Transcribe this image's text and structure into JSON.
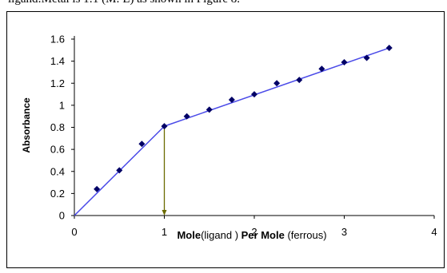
{
  "header_text": "ligand:Metal is 1:1 (M: L) as shown in Figure 8.",
  "chart_data": {
    "type": "line",
    "ylabel": "Absorbance",
    "xlabel_parts": [
      "Mole",
      "(ligand ) ",
      "Per Mole ",
      "(ferrous)"
    ],
    "xlim": [
      0,
      4
    ],
    "ylim": [
      0,
      1.6
    ],
    "x_ticks": [
      "0",
      "1",
      "2",
      "3",
      "4"
    ],
    "y_ticks": [
      "0",
      "0.2",
      "0.4",
      "0.6",
      "0.8",
      "1",
      "1.2",
      "1.4",
      "1.6"
    ],
    "grid": false,
    "points": {
      "x": [
        0.25,
        0.5,
        0.75,
        1.0,
        1.25,
        1.5,
        1.75,
        2.0,
        2.25,
        2.5,
        2.75,
        3.0,
        3.25,
        3.5
      ],
      "y": [
        0.24,
        0.41,
        0.65,
        0.81,
        0.9,
        0.96,
        1.05,
        1.1,
        1.2,
        1.23,
        1.33,
        1.39,
        1.43,
        1.52
      ]
    },
    "fit_lines": [
      {
        "x": [
          0,
          1.0
        ],
        "y": [
          0,
          0.81
        ]
      },
      {
        "x": [
          1.0,
          3.5
        ],
        "y": [
          0.81,
          1.52
        ]
      }
    ],
    "marker_arrow": {
      "x": 1.0,
      "y_from": 0.81,
      "y_to": 0
    },
    "colors": {
      "line": "#4a4ae8",
      "marker": "#000066",
      "arrow": "#6b6b00"
    }
  }
}
